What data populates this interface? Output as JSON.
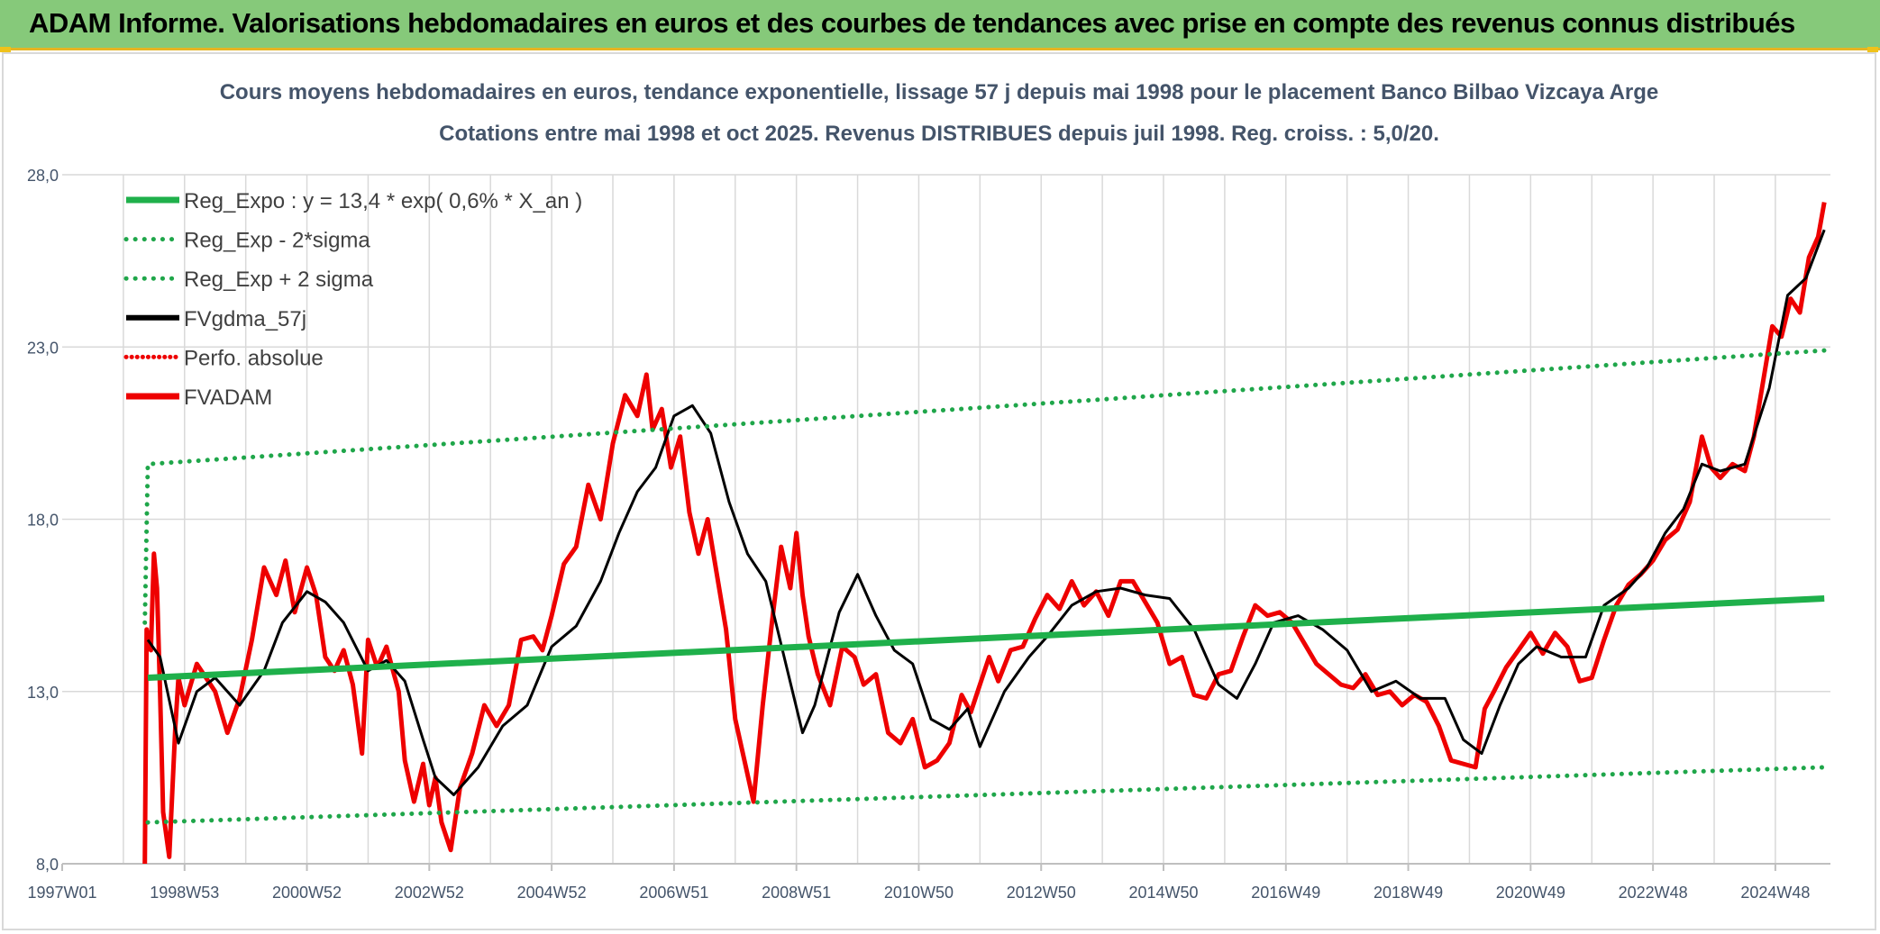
{
  "banner": {
    "title": "ADAM Informe. Valorisations hebdomadaires en euros et des courbes de tendances avec prise en compte des revenus connus distribués"
  },
  "colors": {
    "banner_bg": "#86c97a",
    "green": "#1fb04b",
    "green_dot": "#1fa64a",
    "black": "#000000",
    "red": "#ee0000",
    "grid": "#d9d9d9",
    "text": "#44546a"
  },
  "chart_data": {
    "type": "line",
    "title": "Cours moyens hebdomadaires en euros, tendance exponentielle, lissage 57 j depuis mai 1998 pour le placement Banco Bilbao Vizcaya Arge",
    "subtitle": "Cotations entre mai 1998 et oct 2025. Revenus DISTRIBUES depuis juil 1998. Reg. croiss. : 5,0/20.",
    "xlabel": "",
    "ylabel": "",
    "x_unit": "year",
    "xlim": [
      1997.0,
      2025.9
    ],
    "ylim": [
      8.0,
      28.0
    ],
    "y_ticks": [
      "8,0",
      "13,0",
      "18,0",
      "23,0",
      "28,0"
    ],
    "y_tick_values": [
      8,
      13,
      18,
      23,
      28
    ],
    "x_ticks": [
      "1997W01",
      "1998W53",
      "2000W52",
      "2002W52",
      "2004W52",
      "2006W51",
      "2008W51",
      "2010W50",
      "2012W50",
      "2014W50",
      "2016W49",
      "2018W49",
      "2020W49",
      "2022W48",
      "2024W48"
    ],
    "x_tick_values": [
      1997.0,
      1999.0,
      2001.0,
      2003.0,
      2005.0,
      2007.0,
      2009.0,
      2011.0,
      2013.0,
      2015.0,
      2017.0,
      2019.0,
      2021.0,
      2023.0,
      2025.0
    ],
    "grid": true,
    "legend_position": "top-left",
    "legend": [
      "Reg_Expo : y = 13,4 * exp( 0,6% *  X_an )",
      "Reg_Exp - 2*sigma",
      "Reg_Exp + 2 sigma",
      "FVgdma_57j",
      "Perfo. absolue",
      "FVADAM"
    ],
    "series": [
      {
        "name": "Reg_Expo : y = 13,4 * exp( 0,6% *  X_an )",
        "style": "solid-green-thick",
        "x": [
          1998.4,
          2025.8
        ],
        "y": [
          13.4,
          15.7
        ]
      },
      {
        "name": "Reg_Exp - 2*sigma",
        "style": "dotted-green",
        "x": [
          1998.4,
          2025.8
        ],
        "y": [
          9.2,
          10.8
        ]
      },
      {
        "name": "Reg_Exp + 2 sigma",
        "style": "dotted-green",
        "x": [
          1998.35,
          1998.4,
          2025.8
        ],
        "y": [
          15.0,
          19.6,
          22.9
        ]
      },
      {
        "name": "FVgdma_57j",
        "style": "solid-black",
        "x": [
          1998.4,
          1998.6,
          1998.9,
          1999.2,
          1999.5,
          1999.9,
          2000.3,
          2000.6,
          2001.0,
          2001.3,
          2001.6,
          2002.0,
          2002.3,
          2002.6,
          2002.9,
          2003.1,
          2003.4,
          2003.8,
          2004.2,
          2004.6,
          2005.0,
          2005.4,
          2005.8,
          2006.1,
          2006.4,
          2006.7,
          2007.0,
          2007.3,
          2007.6,
          2007.9,
          2008.2,
          2008.5,
          2008.8,
          2009.1,
          2009.3,
          2009.7,
          2010.0,
          2010.3,
          2010.6,
          2010.9,
          2011.2,
          2011.5,
          2011.8,
          2012.0,
          2012.4,
          2012.8,
          2013.1,
          2013.5,
          2013.9,
          2014.3,
          2014.7,
          2015.1,
          2015.5,
          2015.9,
          2016.2,
          2016.5,
          2016.8,
          2017.2,
          2017.6,
          2018.0,
          2018.4,
          2018.8,
          2019.2,
          2019.6,
          2019.9,
          2020.2,
          2020.5,
          2020.8,
          2021.1,
          2021.5,
          2021.9,
          2022.2,
          2022.6,
          2022.9,
          2023.2,
          2023.5,
          2023.8,
          2024.1,
          2024.5,
          2024.9,
          2025.2,
          2025.5,
          2025.8
        ],
        "y": [
          14.5,
          14.0,
          11.5,
          13.0,
          13.4,
          12.6,
          13.6,
          15.0,
          15.9,
          15.6,
          15.0,
          13.6,
          13.9,
          13.3,
          11.6,
          10.5,
          10.0,
          10.8,
          12.0,
          12.6,
          14.3,
          14.9,
          16.2,
          17.6,
          18.8,
          19.5,
          21.0,
          21.3,
          20.5,
          18.5,
          17.0,
          16.2,
          14.0,
          11.8,
          12.6,
          15.3,
          16.4,
          15.2,
          14.2,
          13.8,
          12.2,
          11.9,
          12.5,
          11.4,
          13.0,
          14.0,
          14.6,
          15.5,
          15.9,
          16.0,
          15.8,
          15.7,
          14.8,
          13.2,
          12.8,
          13.8,
          15.0,
          15.2,
          14.8,
          14.2,
          13.0,
          13.3,
          12.8,
          12.8,
          11.6,
          11.2,
          12.6,
          13.8,
          14.3,
          14.0,
          14.0,
          15.5,
          16.0,
          16.6,
          17.6,
          18.3,
          19.6,
          19.4,
          19.6,
          21.8,
          24.5,
          25.0,
          26.4
        ]
      },
      {
        "name": "Perfo. absolue",
        "style": "dotted-red",
        "x": [],
        "y": []
      },
      {
        "name": "FVADAM",
        "style": "solid-red-thick",
        "x": [
          1998.35,
          1998.38,
          1998.45,
          1998.5,
          1998.55,
          1998.6,
          1998.65,
          1998.75,
          1998.85,
          1998.9,
          1999.0,
          1999.2,
          1999.5,
          1999.7,
          1999.9,
          2000.1,
          2000.3,
          2000.5,
          2000.65,
          2000.8,
          2001.0,
          2001.15,
          2001.3,
          2001.45,
          2001.6,
          2001.75,
          2001.9,
          2002.0,
          2002.15,
          2002.3,
          2002.5,
          2002.6,
          2002.75,
          2002.9,
          2003.0,
          2003.1,
          2003.2,
          2003.35,
          2003.5,
          2003.7,
          2003.9,
          2004.1,
          2004.3,
          2004.5,
          2004.7,
          2004.85,
          2005.0,
          2005.2,
          2005.4,
          2005.6,
          2005.8,
          2006.0,
          2006.2,
          2006.4,
          2006.55,
          2006.65,
          2006.8,
          2006.95,
          2007.1,
          2007.25,
          2007.4,
          2007.55,
          2007.7,
          2007.85,
          2008.0,
          2008.15,
          2008.3,
          2008.45,
          2008.6,
          2008.75,
          2008.9,
          2009.0,
          2009.1,
          2009.2,
          2009.35,
          2009.55,
          2009.75,
          2009.95,
          2010.1,
          2010.3,
          2010.5,
          2010.7,
          2010.9,
          2011.1,
          2011.3,
          2011.5,
          2011.7,
          2011.85,
          2012.0,
          2012.15,
          2012.3,
          2012.5,
          2012.7,
          2012.9,
          2013.1,
          2013.3,
          2013.5,
          2013.7,
          2013.9,
          2014.1,
          2014.3,
          2014.5,
          2014.7,
          2014.9,
          2015.1,
          2015.3,
          2015.5,
          2015.7,
          2015.9,
          2016.1,
          2016.3,
          2016.5,
          2016.7,
          2016.9,
          2017.1,
          2017.3,
          2017.5,
          2017.7,
          2017.9,
          2018.1,
          2018.3,
          2018.5,
          2018.7,
          2018.9,
          2019.1,
          2019.3,
          2019.5,
          2019.7,
          2019.9,
          2020.1,
          2020.25,
          2020.4,
          2020.6,
          2020.8,
          2021.0,
          2021.2,
          2021.4,
          2021.6,
          2021.8,
          2022.0,
          2022.2,
          2022.4,
          2022.6,
          2022.8,
          2023.0,
          2023.2,
          2023.4,
          2023.6,
          2023.8,
          2023.95,
          2024.1,
          2024.3,
          2024.5,
          2024.65,
          2024.8,
          2024.95,
          2025.1,
          2025.25,
          2025.4,
          2025.55,
          2025.7,
          2025.8
        ],
        "y": [
          8.0,
          14.8,
          14.2,
          17.0,
          16.0,
          13.0,
          9.5,
          8.2,
          12.0,
          13.4,
          12.6,
          13.8,
          13.0,
          11.8,
          12.8,
          14.5,
          16.6,
          15.8,
          16.8,
          15.3,
          16.6,
          15.8,
          14.0,
          13.6,
          14.2,
          13.2,
          11.2,
          14.5,
          13.7,
          14.3,
          13.0,
          11.0,
          9.8,
          10.9,
          9.7,
          10.5,
          9.2,
          8.4,
          10.2,
          11.2,
          12.6,
          12.0,
          12.6,
          14.5,
          14.6,
          14.2,
          15.2,
          16.7,
          17.2,
          19.0,
          18.0,
          20.2,
          21.6,
          21.0,
          22.2,
          20.6,
          21.2,
          19.5,
          20.4,
          18.2,
          17.0,
          18.0,
          16.4,
          14.8,
          12.2,
          11.0,
          9.8,
          12.6,
          15.0,
          17.2,
          16.0,
          17.6,
          15.8,
          14.6,
          13.5,
          12.6,
          14.3,
          14.0,
          13.2,
          13.5,
          11.8,
          11.5,
          12.2,
          10.8,
          11.0,
          11.5,
          12.9,
          12.4,
          13.2,
          14.0,
          13.3,
          14.2,
          14.3,
          15.1,
          15.8,
          15.4,
          16.2,
          15.5,
          15.9,
          15.2,
          16.2,
          16.2,
          15.6,
          15.0,
          13.8,
          14.0,
          12.9,
          12.8,
          13.5,
          13.6,
          14.6,
          15.5,
          15.2,
          15.3,
          15.0,
          14.4,
          13.8,
          13.5,
          13.2,
          13.1,
          13.5,
          12.9,
          13.0,
          12.6,
          12.9,
          12.7,
          12.0,
          11.0,
          10.9,
          10.8,
          12.5,
          13.0,
          13.7,
          14.2,
          14.7,
          14.1,
          14.7,
          14.3,
          13.3,
          13.4,
          14.5,
          15.5,
          16.1,
          16.4,
          16.8,
          17.4,
          17.7,
          18.5,
          20.4,
          19.5,
          19.2,
          19.6,
          19.4,
          20.4,
          22.0,
          23.6,
          23.3,
          24.4,
          24.0,
          25.6,
          26.2,
          27.2
        ]
      }
    ]
  }
}
